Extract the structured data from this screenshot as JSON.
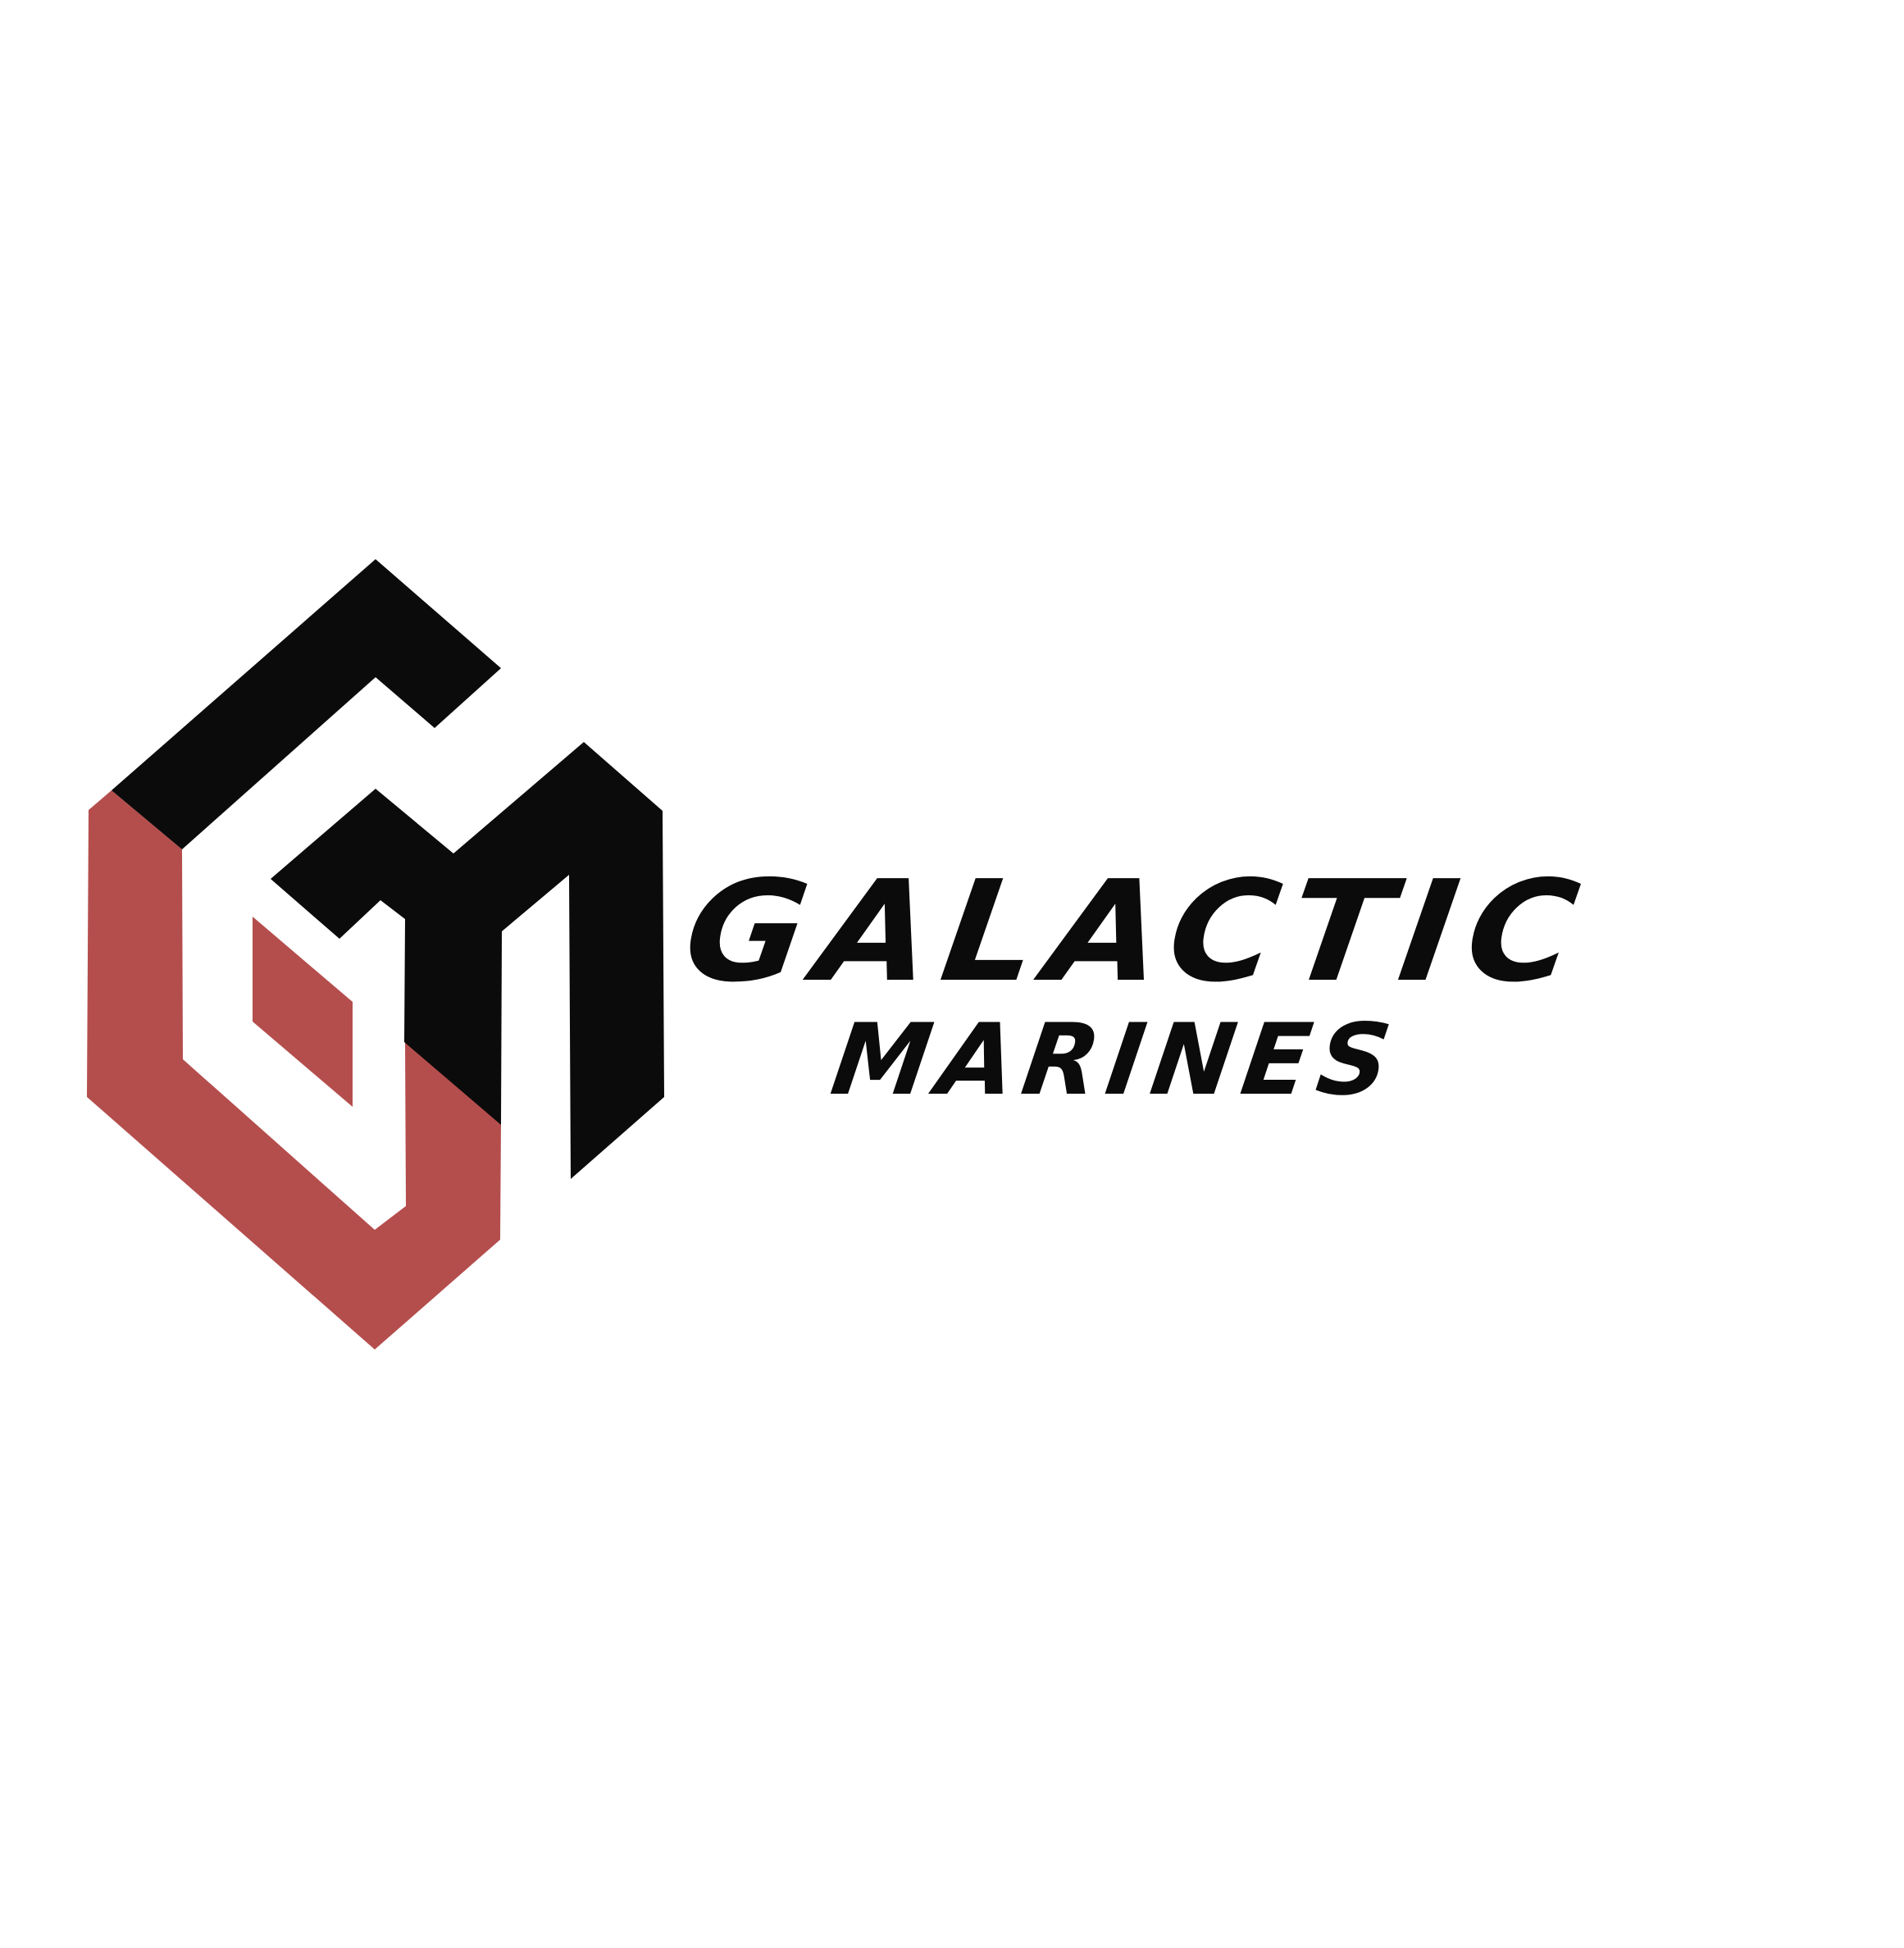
{
  "logo": {
    "title_line1": "GALACTIC",
    "title_line2": "MARINES",
    "icon": "gm-monogram-icon",
    "colors": {
      "background": "#ffffff",
      "black": "#0b0b0b",
      "red": "#b44e4d"
    }
  }
}
